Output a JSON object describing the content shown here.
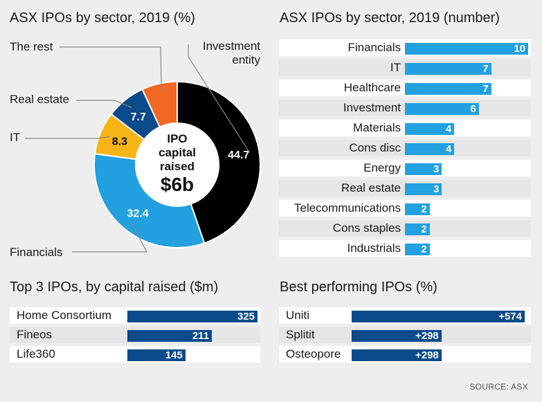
{
  "chart_data": [
    {
      "type": "pie",
      "title": "ASX IPOs by sector, 2019 (%)",
      "center_label": [
        "IPO",
        "capital",
        "raised"
      ],
      "center_value": "$6b",
      "slices": [
        {
          "name": "Investment entity",
          "name_lines": [
            "Investment",
            "entity"
          ],
          "value": 44.7,
          "label": "44.7",
          "color": "#000000"
        },
        {
          "name": "Financials",
          "name_lines": [
            "Financials"
          ],
          "value": 32.4,
          "label": "32.4",
          "color": "#22a0e0"
        },
        {
          "name": "IT",
          "name_lines": [
            "IT"
          ],
          "value": 8.3,
          "label": "8.3",
          "color": "#f7b417"
        },
        {
          "name": "Real estate",
          "name_lines": [
            "Real estate"
          ],
          "value": 7.7,
          "label": "7.7",
          "color": "#0b4a8b"
        },
        {
          "name": "The rest",
          "name_lines": [
            "The rest"
          ],
          "value": 6.9,
          "label": "",
          "color": "#f26722"
        }
      ]
    },
    {
      "type": "bar",
      "title": "ASX IPOs by sector, 2019 (number)",
      "categories": [
        "Financials",
        "IT",
        "Healthcare",
        "Investment",
        "Materials",
        "Cons disc",
        "Energy",
        "Real estate",
        "Telecommunications",
        "Cons staples",
        "Industrials"
      ],
      "values": [
        10,
        7,
        7,
        6,
        4,
        4,
        3,
        3,
        2,
        2,
        2
      ],
      "labels": [
        "10",
        "7",
        "7",
        "6",
        "4",
        "4",
        "3",
        "3",
        "2",
        "2",
        "2"
      ],
      "xlim": [
        0,
        10
      ],
      "color": "#22a0e0"
    },
    {
      "type": "bar",
      "title": "Top 3 IPOs, by capital raised ($m)",
      "categories": [
        "Home Consortium",
        "Fineos",
        "Life360"
      ],
      "values": [
        325,
        211,
        145
      ],
      "labels": [
        "325",
        "211",
        "145"
      ],
      "xlim": [
        0,
        325
      ],
      "color": "#0b4a8b"
    },
    {
      "type": "bar",
      "title": "Best performing IPOs (%)",
      "categories": [
        "Uniti",
        "Splitit",
        "Osteopore"
      ],
      "values": [
        574,
        298,
        298
      ],
      "labels": [
        "+574",
        "+298",
        "+298"
      ],
      "xlim": [
        0,
        574
      ],
      "color": "#0b4a8b"
    }
  ],
  "source": "SOURCE: ASX"
}
